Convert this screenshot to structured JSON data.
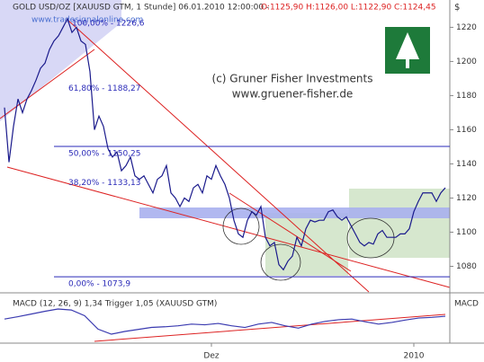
{
  "chart_data": [
    {
      "type": "line",
      "header": "GOLD USD/OZ [XAUUSD GTM, 1 Stunde] 06.01.2010 12:00:00 -",
      "header_values": "O:1125,90 H:1126,00 L:1122,90 C:1124,45",
      "currency": "$",
      "watermark": "www.tradesignalonline.com",
      "copyright": "(c) Gruner Fisher Investments",
      "website": "www.gruener-fisher.de",
      "fib_levels": [
        {
          "value": 1226.6,
          "label": "100,00% - 1226,6"
        },
        {
          "value": 1188.27,
          "label": "61,80% - 1188,27"
        },
        {
          "value": 1150.25,
          "label": "50,00% - 1150,25"
        },
        {
          "value": 1133.13,
          "label": "38,20% - 1133,13"
        },
        {
          "value": 1073.9,
          "label": "0,00% - 1073,9"
        }
      ],
      "categories": [
        null,
        null,
        null,
        null,
        null,
        null,
        null,
        null,
        null,
        null,
        null,
        null,
        null,
        null,
        null,
        null,
        null,
        null,
        null,
        null,
        null,
        null,
        null,
        null,
        null,
        null,
        null,
        null,
        null,
        null,
        null,
        null,
        null,
        null,
        null,
        null,
        null,
        null,
        null,
        null,
        null,
        null,
        null,
        null,
        null,
        null,
        "Dez",
        null,
        null,
        null,
        null,
        null,
        null,
        null,
        null,
        null,
        null,
        null,
        null,
        null,
        null,
        null,
        null,
        null,
        null,
        null,
        null,
        null,
        null,
        null,
        null,
        null,
        null,
        null,
        null,
        null,
        null,
        null,
        null,
        null,
        null,
        null,
        null,
        null,
        null,
        null,
        null,
        null,
        null,
        null,
        null,
        "2010",
        null,
        null,
        null,
        null,
        null,
        null,
        null
      ],
      "values": [
        1173,
        1141,
        1162,
        1178,
        1170,
        1178,
        1183,
        1189,
        1196,
        1199,
        1207,
        1212,
        1215,
        1220,
        1225,
        1217,
        1220,
        1212,
        1210,
        1194,
        1160,
        1168,
        1162,
        1149,
        1144,
        1147,
        1136,
        1139,
        1144,
        1133,
        1131,
        1133,
        1128,
        1123,
        1131,
        1133,
        1139,
        1123,
        1120,
        1115,
        1120,
        1118,
        1126,
        1128,
        1123,
        1133,
        1131,
        1139,
        1133,
        1128,
        1120,
        1107,
        1099,
        1097,
        1107,
        1112,
        1110,
        1115,
        1097,
        1092,
        1094,
        1081,
        1078,
        1083,
        1086,
        1097,
        1092,
        1102,
        1107,
        1106,
        1107,
        1107,
        1112,
        1113,
        1109,
        1107,
        1109,
        1104,
        1099,
        1094,
        1092,
        1094,
        1093,
        1099,
        1101,
        1097,
        1097,
        1097,
        1099,
        1099,
        1102,
        1112,
        1118,
        1123,
        1123,
        1123,
        1118,
        1123,
        1126
      ],
      "color": "#1a1a8c",
      "ylim": [
        1065,
        1236
      ],
      "yticks": [
        1080,
        1100,
        1120,
        1140,
        1160,
        1180,
        1200,
        1220
      ]
    },
    {
      "type": "line",
      "title": "MACD (12, 26, 9) 1,34 Trigger 1,05 (XAUUSD GTM)",
      "label": "MACD",
      "values": [
        0.5,
        1.2,
        2.0,
        2.8,
        3.5,
        3.2,
        1.5,
        -2.5,
        -4.0,
        -3.2,
        -2.6,
        -2.0,
        -1.8,
        -1.5,
        -1.0,
        -1.2,
        -0.8,
        -1.5,
        -2.0,
        -1.0,
        -0.5,
        -1.5,
        -2.2,
        -1.0,
        -0.2,
        0.3,
        0.5,
        -0.3,
        -1.0,
        -0.5,
        0.2,
        0.8,
        1.0,
        1.34
      ],
      "color": "#3a3ab0"
    }
  ]
}
